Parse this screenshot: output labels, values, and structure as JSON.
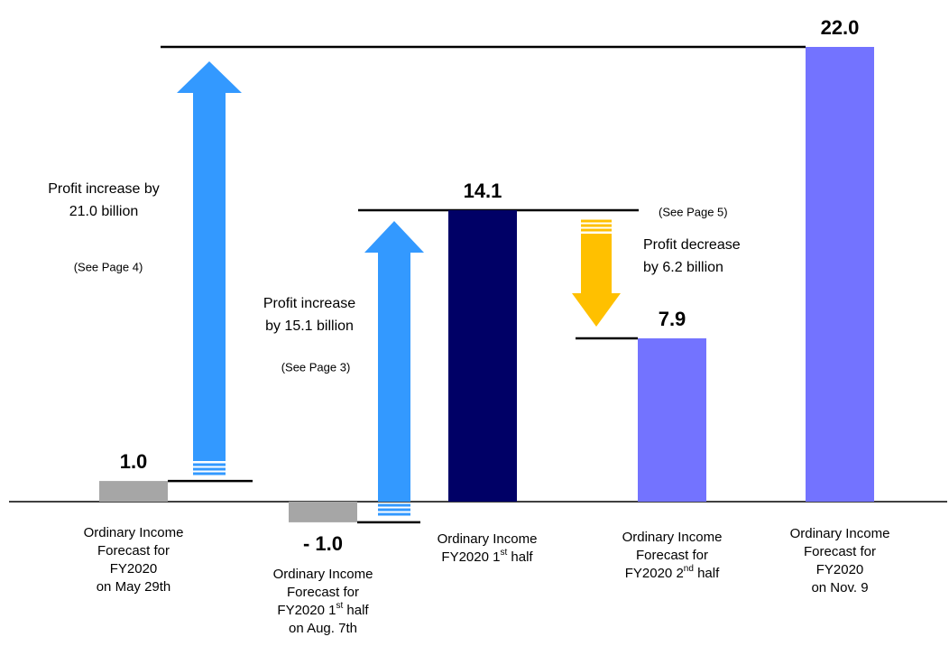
{
  "chart_data": {
    "type": "waterfall",
    "categories": [
      [
        "Ordinary Income",
        "Forecast for",
        "FY2020",
        "on May 29th"
      ],
      [
        "Ordinary Income",
        "Forecast for",
        {
          "text": "FY2020 1",
          "sup": "st",
          "rest": " half"
        },
        "on Aug. 7th"
      ],
      [
        "Ordinary Income",
        {
          "text": "FY2020 1",
          "sup": "st",
          "rest": " half"
        }
      ],
      [
        "Ordinary Income",
        "Forecast for",
        {
          "text": "FY2020 2",
          "sup": "nd",
          "rest": " half"
        }
      ],
      [
        "Ordinary Income",
        "Forecast for",
        "FY2020",
        "on Nov. 9"
      ]
    ],
    "values": [
      1.0,
      -1.0,
      14.1,
      7.9,
      22.0
    ],
    "value_labels": [
      "1.0",
      "- 1.0",
      "14.1",
      "7.9",
      "22.0"
    ],
    "colors": [
      "#a6a6a6",
      "#a6a6a6",
      "#000066",
      "#7373ff",
      "#7373ff"
    ],
    "annotations": [
      {
        "lines": [
          "Profit increase by",
          "21.0 billion"
        ],
        "note": "(See Page 4)"
      },
      {
        "lines": [
          "Profit increase",
          "by 15.1 billion"
        ],
        "note": "(See Page 3)"
      },
      {
        "lines": [
          "Profit decrease",
          "by 6.2 billion"
        ],
        "note": "(See Page 5)"
      }
    ],
    "arrow_colors": [
      "#3399ff",
      "#3399ff",
      "#ffc000"
    ]
  }
}
